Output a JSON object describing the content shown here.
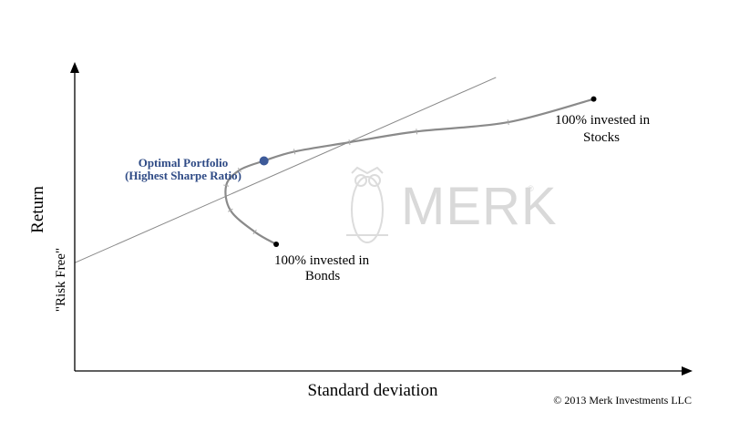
{
  "chart_data": {
    "type": "line",
    "title": "",
    "xlabel": "Standard deviation",
    "ylabel": "Return",
    "risk_free_label": "\"Risk Free\"",
    "xlim": [
      0,
      100
    ],
    "ylim": [
      0,
      100
    ],
    "grid": false,
    "legend": "none",
    "series": [
      {
        "role": "efficient-frontier",
        "x": [
          33,
          29.5,
          25.5,
          24.8,
          27,
          31,
          36,
          45,
          56,
          71,
          85
        ],
        "y": [
          41,
          45,
          52,
          60,
          65,
          68,
          71,
          74,
          77.5,
          80.5,
          88
        ]
      },
      {
        "role": "capital-market-line",
        "x": [
          0,
          69
        ],
        "y": [
          35,
          95
        ]
      }
    ],
    "annotations": {
      "bonds": {
        "line1": "100% invested in",
        "line2": "Bonds",
        "x": 33,
        "y": 41
      },
      "stocks": {
        "line1": "100% invested in",
        "line2": "Stocks",
        "x": 85,
        "y": 88
      },
      "optimal": {
        "line1": "Optimal Portfolio",
        "line2": "(Highest Sharpe Ratio)",
        "x": 31,
        "y": 68
      }
    },
    "colors": {
      "frontier": "#8a8a8a",
      "cml": "#888888",
      "optimal_point": "#3d5a99",
      "optimal_label": "#2e4a85"
    }
  },
  "watermark": {
    "text": "MERK",
    "registered": "®"
  },
  "copyright": "© 2013 Merk Investments LLC"
}
